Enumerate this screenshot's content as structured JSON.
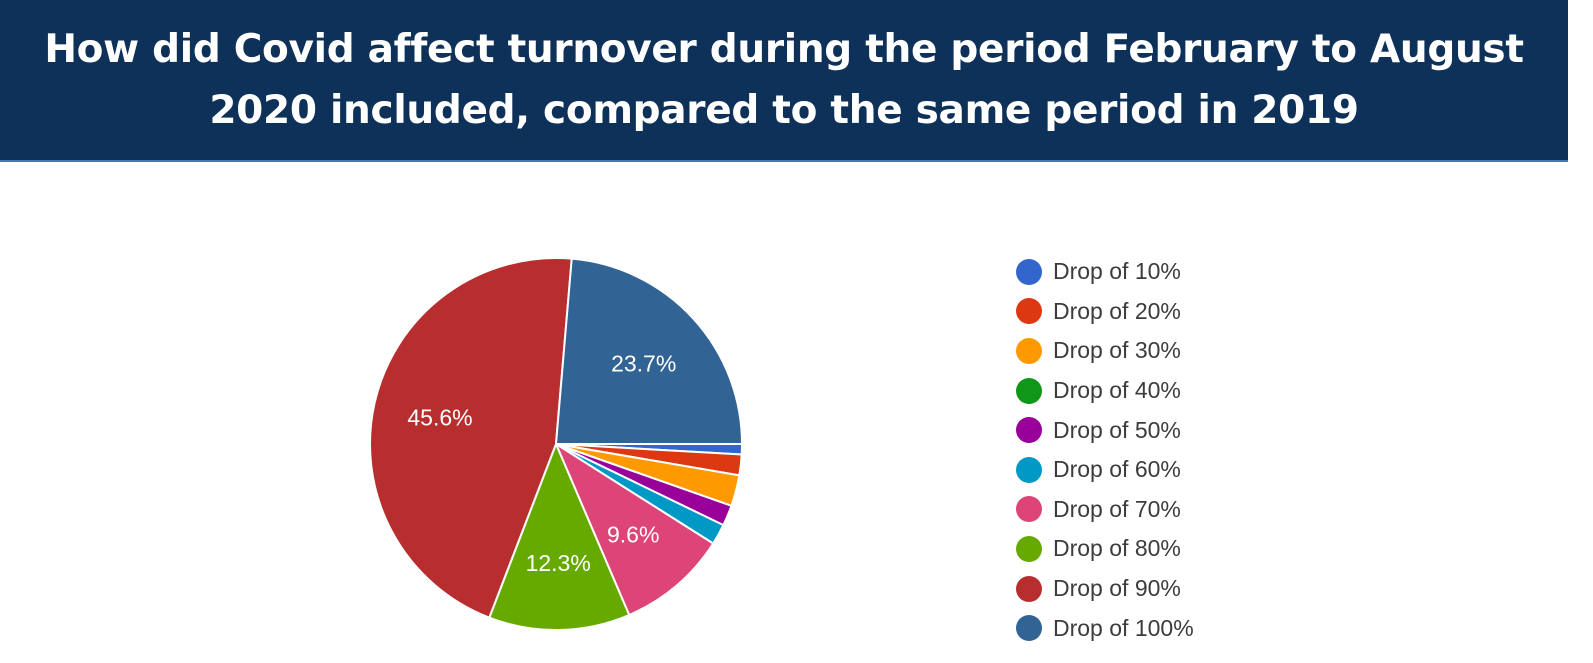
{
  "header": {
    "title": "How did Covid affect turnover during the period February to August 2020 included, compared to the same period in 2019"
  },
  "chart_data": {
    "type": "pie",
    "title": "How did Covid affect turnover during the period February to August 2020 included, compared to the same period in 2019",
    "legend_position": "right",
    "slices": [
      {
        "label": "Drop of 10%",
        "value": 0.9,
        "color": "#3366cc",
        "data_label": ""
      },
      {
        "label": "Drop of 20%",
        "value": 1.8,
        "color": "#dc3912",
        "data_label": ""
      },
      {
        "label": "Drop of 30%",
        "value": 2.7,
        "color": "#ff9900",
        "data_label": ""
      },
      {
        "label": "Drop of 40%",
        "value": 0.0,
        "color": "#109618",
        "data_label": ""
      },
      {
        "label": "Drop of 50%",
        "value": 1.8,
        "color": "#990099",
        "data_label": ""
      },
      {
        "label": "Drop of 60%",
        "value": 1.8,
        "color": "#0099c6",
        "data_label": ""
      },
      {
        "label": "Drop of 70%",
        "value": 9.6,
        "color": "#dd4477",
        "data_label": "9.6%"
      },
      {
        "label": "Drop of 80%",
        "value": 12.3,
        "color": "#66aa00",
        "data_label": "12.3%"
      },
      {
        "label": "Drop of 90%",
        "value": 45.6,
        "color": "#b82e2e",
        "data_label": "45.6%"
      },
      {
        "label": "Drop of 100%",
        "value": 23.7,
        "color": "#316395",
        "data_label": "23.7%"
      }
    ]
  }
}
